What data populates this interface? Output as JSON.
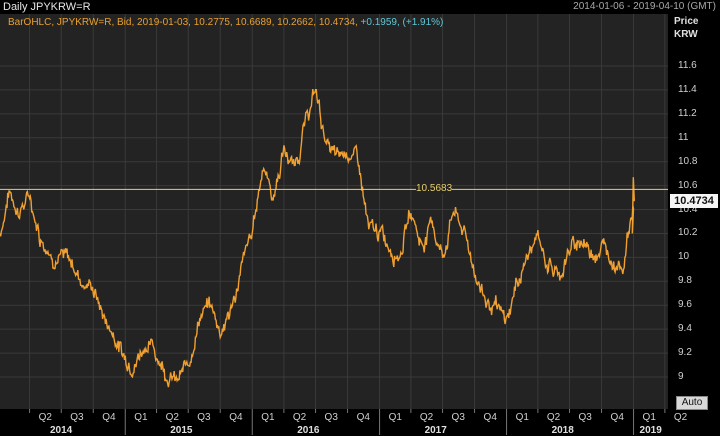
{
  "header": {
    "title": "Daily JPYKRW=R",
    "date_range": "2014-01-06 - 2019-04-10 (GMT)"
  },
  "legend": {
    "main": "BarOHLC, JPYKRW=R, Bid, 2019-01-03, 10.2775, 10.6689, 10.2662, 10.4734,",
    "change": "+0.1959, (+1.91%)"
  },
  "y_axis": {
    "title_1": "Price",
    "title_2": "KRW",
    "ticks": [
      "11.6",
      "11.4",
      "11.2",
      "11",
      "10.8",
      "10.6",
      "10.4",
      "10.2",
      "10",
      "9.8",
      "9.6",
      "9.4",
      "9.2",
      "9"
    ],
    "last_value": "10.4734",
    "auto_label": "Auto"
  },
  "reference_line": {
    "value": 10.5683,
    "label": "10.5683"
  },
  "x_axis": {
    "quarters": [
      "Q2",
      "Q3",
      "Q4",
      "Q1",
      "Q2",
      "Q3",
      "Q4",
      "Q1",
      "Q2",
      "Q3",
      "Q4",
      "Q1",
      "Q2",
      "Q3",
      "Q4",
      "Q1",
      "Q2",
      "Q3",
      "Q4",
      "Q1",
      "Q2"
    ],
    "years": [
      "2014",
      "2015",
      "2016",
      "2017",
      "2018",
      "2019"
    ]
  },
  "colors": {
    "series": "#f0a030",
    "reference_line": "#e8d070",
    "grid": "#3a3a3a",
    "background": "#232323"
  },
  "chart_data": {
    "type": "line",
    "title": "Daily JPYKRW=R",
    "ylabel": "Price KRW",
    "ylim": [
      8.9,
      11.8
    ],
    "grid": true,
    "series": [
      {
        "name": "JPYKRW=R",
        "points": [
          [
            "2014-01-06",
            10.2
          ],
          [
            "2014-02-01",
            10.55
          ],
          [
            "2014-03-01",
            10.4
          ],
          [
            "2014-04-01",
            10.5
          ],
          [
            "2014-05-01",
            10.2
          ],
          [
            "2014-06-01",
            10.05
          ],
          [
            "2014-07-01",
            10.0
          ],
          [
            "2014-08-01",
            9.95
          ],
          [
            "2014-09-01",
            9.8
          ],
          [
            "2014-10-01",
            9.75
          ],
          [
            "2014-11-01",
            9.5
          ],
          [
            "2014-12-01",
            9.35
          ],
          [
            "2015-01-01",
            9.15
          ],
          [
            "2015-02-01",
            9.15
          ],
          [
            "2015-03-01",
            9.3
          ],
          [
            "2015-04-01",
            9.2
          ],
          [
            "2015-05-01",
            9.05
          ],
          [
            "2015-06-01",
            8.95
          ],
          [
            "2015-07-01",
            9.1
          ],
          [
            "2015-08-01",
            9.5
          ],
          [
            "2015-09-01",
            9.6
          ],
          [
            "2015-10-01",
            9.4
          ],
          [
            "2015-11-01",
            9.55
          ],
          [
            "2015-12-01",
            9.9
          ],
          [
            "2016-01-01",
            10.2
          ],
          [
            "2016-02-01",
            10.8
          ],
          [
            "2016-03-01",
            10.5
          ],
          [
            "2016-04-01",
            10.9
          ],
          [
            "2016-05-01",
            10.75
          ],
          [
            "2016-06-01",
            11.1
          ],
          [
            "2016-07-01",
            11.4
          ],
          [
            "2016-08-01",
            10.95
          ],
          [
            "2016-09-01",
            10.8
          ],
          [
            "2016-10-01",
            10.9
          ],
          [
            "2016-11-01",
            10.8
          ],
          [
            "2016-12-01",
            10.2
          ],
          [
            "2017-01-01",
            10.2
          ],
          [
            "2017-02-01",
            10.1
          ],
          [
            "2017-03-01",
            10.05
          ],
          [
            "2017-04-01",
            10.4
          ],
          [
            "2017-05-01",
            10.1
          ],
          [
            "2017-06-01",
            10.3
          ],
          [
            "2017-07-01",
            10.0
          ],
          [
            "2017-08-01",
            10.4
          ],
          [
            "2017-09-01",
            10.2
          ],
          [
            "2017-10-01",
            9.9
          ],
          [
            "2017-11-01",
            9.65
          ],
          [
            "2017-12-01",
            9.55
          ],
          [
            "2018-01-01",
            9.45
          ],
          [
            "2018-02-01",
            9.8
          ],
          [
            "2018-03-01",
            10.0
          ],
          [
            "2018-04-01",
            10.15
          ],
          [
            "2018-05-01",
            9.95
          ],
          [
            "2018-06-01",
            9.85
          ],
          [
            "2018-07-01",
            10.05
          ],
          [
            "2018-08-01",
            10.15
          ],
          [
            "2018-09-01",
            10.05
          ],
          [
            "2018-10-01",
            10.1
          ],
          [
            "2018-11-01",
            10.0
          ],
          [
            "2018-12-01",
            9.95
          ],
          [
            "2019-01-03",
            10.4734
          ]
        ]
      }
    ]
  }
}
